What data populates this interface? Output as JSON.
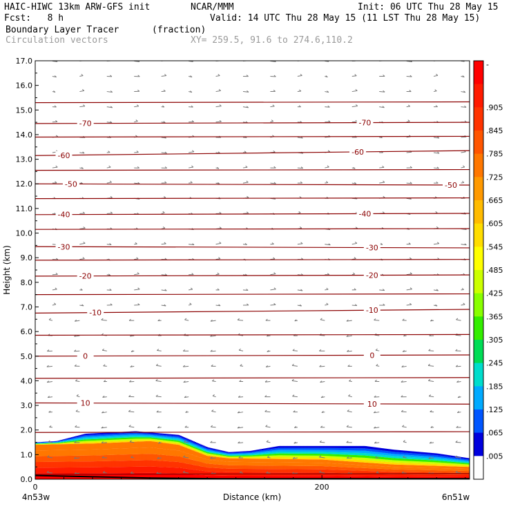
{
  "header": {
    "line1_left": "HAIC-HIWC 13km ARW-GFS init",
    "line1_mid": "NCAR/MMM",
    "line1_right": "Init: 06 UTC Thu 28 May 15",
    "line2_left": "Fcst:   8 h",
    "line2_right": "Valid: 14 UTC Thu 28 May 15 (11 LST Thu 28 May 15)",
    "line3_left": "Boundary Layer Tracer",
    "line3_mid": "(fraction)",
    "line4_left": "Circulation vectors",
    "line4_right": "XY= 259.5, 91.6 to 274.6,110.2"
  },
  "chart_data": {
    "type": "heatmap",
    "title": "Boundary Layer Tracer",
    "units": "(fraction)",
    "xlabel": "Distance (km)",
    "ylabel": "Height (km)",
    "xlim": [
      0,
      303
    ],
    "ylim": [
      0,
      17
    ],
    "x_tick_labels": [
      "0",
      "200"
    ],
    "x_tick_values": [
      0,
      200
    ],
    "x_end_labels": {
      "left": "4n53w",
      "right": "6n51w"
    },
    "y_ticks": [
      "0.0",
      "1.0",
      "2.0",
      "3.0",
      "4.0",
      "5.0",
      "6.0",
      "7.0",
      "8.0",
      "9.0",
      "10.0",
      "11.0",
      "12.0",
      "13.0",
      "14.0",
      "15.0",
      "16.0",
      "17.0"
    ],
    "colorbar_labels": [
      "-",
      ".905",
      ".845",
      ".785",
      ".725",
      ".665",
      ".605",
      ".545",
      ".485",
      ".425",
      ".365",
      ".305",
      ".245",
      ".185",
      ".125",
      ".065",
      ".005"
    ],
    "colorbar_colors": [
      "#ff0000",
      "#ff1a00",
      "#ff3300",
      "#ff5500",
      "#ff7700",
      "#ff9900",
      "#ffbb00",
      "#ffdd00",
      "#ffff00",
      "#ccff00",
      "#88ff00",
      "#33ee00",
      "#00dd55",
      "#00ddcc",
      "#00aaff",
      "#0055ff",
      "#0000dd",
      "#ffffff"
    ],
    "temperature_isotherms": [
      {
        "label": "10",
        "y_left": 3.1,
        "y_right": 3.05,
        "label_x": [
          35,
          235
        ]
      },
      {
        "label": "0",
        "y_left": 5.0,
        "y_right": 5.05,
        "label_x": [
          35,
          235
        ]
      },
      {
        "label": "-10",
        "y_left": 6.75,
        "y_right": 6.9,
        "label_x": [
          42,
          235
        ]
      },
      {
        "label": "-20",
        "y_left": 8.25,
        "y_right": 8.3,
        "label_x": [
          35,
          235
        ]
      },
      {
        "label": "-30",
        "y_left": 9.45,
        "y_right": 9.4,
        "label_x": [
          20,
          235
        ]
      },
      {
        "label": "-40",
        "y_left": 10.75,
        "y_right": 10.8,
        "label_x": [
          20,
          230
        ]
      },
      {
        "label": "-50",
        "y_left": 12.0,
        "y_right": 11.95,
        "label_x": [
          25,
          290
        ]
      },
      {
        "label": "-60",
        "y_left": 13.15,
        "y_right": 13.35,
        "label_x": [
          20,
          225
        ]
      },
      {
        "label": "-70",
        "y_left": 14.45,
        "y_right": 14.5,
        "label_x": [
          35,
          230
        ]
      }
    ],
    "unlabeled_contours": [
      0.2,
      1.9,
      4.1,
      5.85,
      7.5,
      8.9,
      10.15,
      11.4,
      12.55,
      13.9,
      15.3
    ],
    "tracer_top_km": [
      [
        0,
        1.5
      ],
      [
        15,
        1.55
      ],
      [
        35,
        1.85
      ],
      [
        70,
        1.95
      ],
      [
        100,
        1.8
      ],
      [
        120,
        1.3
      ],
      [
        135,
        1.1
      ],
      [
        150,
        1.15
      ],
      [
        170,
        1.35
      ],
      [
        200,
        1.35
      ],
      [
        230,
        1.35
      ],
      [
        250,
        1.2
      ],
      [
        280,
        1.05
      ],
      [
        303,
        0.85
      ]
    ],
    "tracer_core_top_km": [
      [
        0,
        1.4
      ],
      [
        15,
        1.42
      ],
      [
        40,
        1.45
      ],
      [
        80,
        1.55
      ],
      [
        100,
        1.4
      ],
      [
        120,
        0.95
      ],
      [
        135,
        0.85
      ],
      [
        200,
        0.8
      ],
      [
        250,
        0.6
      ],
      [
        303,
        0.5
      ]
    ],
    "terrain_km": [
      [
        0,
        0.15
      ],
      [
        40,
        0.1
      ],
      [
        80,
        0.05
      ],
      [
        130,
        0.02
      ],
      [
        200,
        0.02
      ],
      [
        303,
        0.02
      ]
    ]
  }
}
